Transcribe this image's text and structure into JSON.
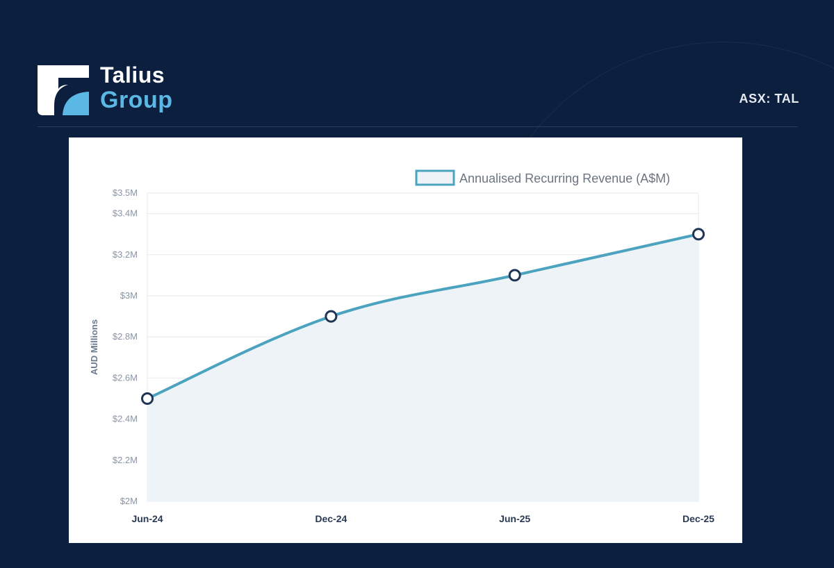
{
  "brand": {
    "name_line1": "Talius",
    "name_line2": "Group",
    "ticker": "ASX: TAL"
  },
  "colors": {
    "background": "#0d1f3f",
    "accent": "#5bb8e4",
    "series_line": "#4ba3bf",
    "series_fill": "#edf3f7",
    "marker_stroke": "#1e3556"
  },
  "chart_data": {
    "type": "area",
    "categories": [
      "Jun-24",
      "Dec-24",
      "Jun-25",
      "Dec-25"
    ],
    "series": [
      {
        "name": "Annualised Recurring Revenue (A$M)",
        "values": [
          2.5,
          2.9,
          3.1,
          3.3
        ]
      }
    ],
    "ylabel": "AUD Millions",
    "xlabel": "",
    "title": "",
    "ylim": [
      2.0,
      3.5
    ],
    "yticks": [
      {
        "value": 2.0,
        "label": "$2M"
      },
      {
        "value": 2.2,
        "label": "$2.2M"
      },
      {
        "value": 2.4,
        "label": "$2.4M"
      },
      {
        "value": 2.6,
        "label": "$2.6M"
      },
      {
        "value": 2.8,
        "label": "$2.8M"
      },
      {
        "value": 3.0,
        "label": "$3M"
      },
      {
        "value": 3.2,
        "label": "$3.2M"
      },
      {
        "value": 3.4,
        "label": "$3.4M"
      },
      {
        "value": 3.5,
        "label": "$3.5M"
      }
    ],
    "grid": true,
    "legend": "top-right"
  }
}
